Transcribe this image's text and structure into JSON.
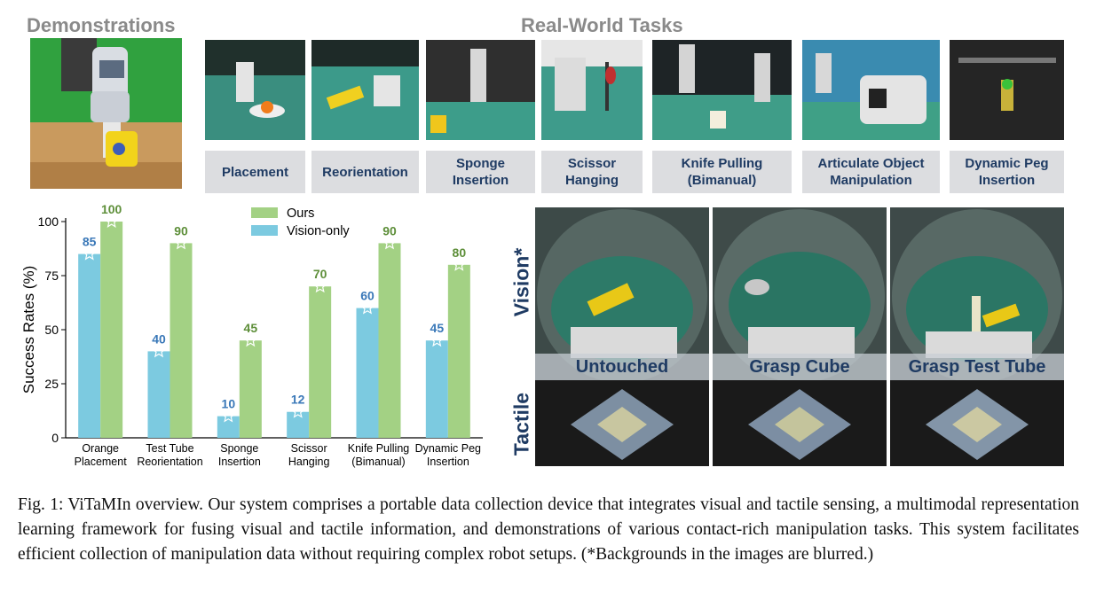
{
  "headings": {
    "demonstrations": "Demonstrations",
    "real_world_tasks": "Real-World Tasks"
  },
  "tasks": [
    {
      "label": "Placement"
    },
    {
      "label": "Reorientation"
    },
    {
      "label": "Sponge\nInsertion"
    },
    {
      "label": "Scissor\nHanging"
    },
    {
      "label": "Knife Pulling\n(Bimanual)"
    },
    {
      "label": "Articulate Object\nManipulation"
    },
    {
      "label": "Dynamic Peg\nInsertion"
    }
  ],
  "camera_views": {
    "row_labels": {
      "vision": "Vision*",
      "tactile": "Tactile"
    },
    "conditions": [
      "Untouched",
      "Grasp Cube",
      "Grasp Test Tube"
    ]
  },
  "chart_data": {
    "type": "bar",
    "categories": [
      "Orange\nPlacement",
      "Test Tube\nReorientation",
      "Sponge\nInsertion",
      "Scissor\nHanging",
      "Knife Pulling\n(Bimanual)",
      "Dynamic Peg\nInsertion"
    ],
    "series": [
      {
        "name": "Vision-only",
        "values": [
          85,
          40,
          10,
          12,
          60,
          45
        ],
        "color": "#7ccae0",
        "label_color": "#3a78b8"
      },
      {
        "name": "Ours",
        "values": [
          100,
          90,
          45,
          70,
          90,
          80
        ],
        "color": "#a3d184",
        "label_color": "#5e8f3a"
      }
    ],
    "ylabel": "Success Rates (%)",
    "xlabel": "",
    "ylim": [
      0,
      100
    ],
    "yticks": [
      0,
      25,
      50,
      75,
      100
    ],
    "legend_position": "top-right",
    "grid": false
  },
  "caption": "Fig. 1: ViTaMIn overview. Our system comprises a portable data collection device that integrates visual and tactile sensing, a multimodal representation learning framework for fusing visual and tactile information, and demonstrations of various contact-rich manipulation tasks. This system facilitates efficient collection of manipulation data without requiring complex robot setups. (*Backgrounds in the images are blurred.)"
}
